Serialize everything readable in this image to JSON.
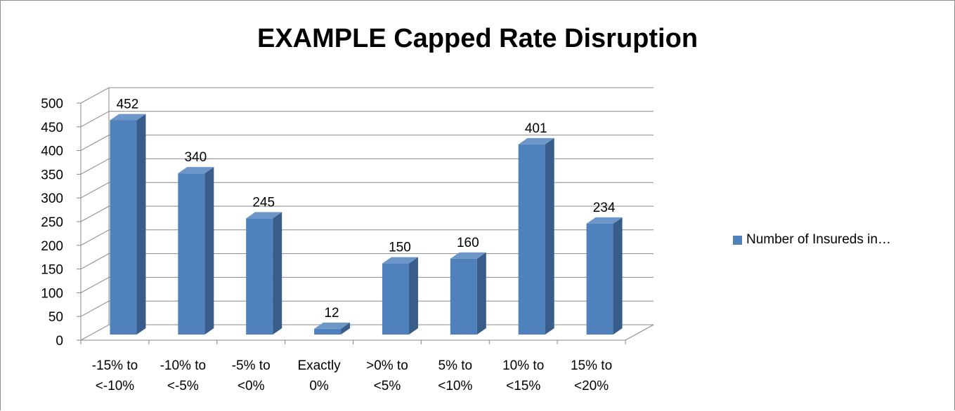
{
  "chart_data": {
    "type": "bar",
    "title": "EXAMPLE Capped Rate Disruption",
    "categories": [
      [
        "-15% to",
        "<-10%"
      ],
      [
        "-10% to",
        "<-5%"
      ],
      [
        "-5% to",
        "<0%"
      ],
      [
        "Exactly",
        "0%"
      ],
      [
        ">0% to",
        "<5%"
      ],
      [
        "5% to",
        "<10%"
      ],
      [
        "10% to",
        "<15%"
      ],
      [
        "15% to",
        "<20%"
      ]
    ],
    "series": [
      {
        "name": "Number of Insureds in…",
        "values": [
          452,
          340,
          245,
          12,
          150,
          160,
          401,
          234
        ]
      }
    ],
    "ylim": [
      0,
      500
    ],
    "yticks": [
      0,
      50,
      100,
      150,
      200,
      250,
      300,
      350,
      400,
      450,
      500
    ],
    "grid": true,
    "legend_position": "right",
    "three_d": true,
    "colors": {
      "bar_front": "#4f81bd",
      "bar_side": "#385d8a",
      "bar_top": "#6d96c8",
      "grid": "#888888"
    }
  }
}
